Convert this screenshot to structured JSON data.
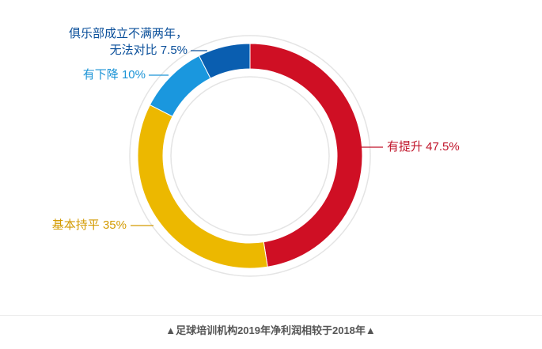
{
  "chart_data": {
    "type": "pie",
    "style": "donut",
    "categories": [
      "有提升",
      "基本持平",
      "有下降",
      "俱乐部成立不满两年，无法对比"
    ],
    "values": [
      47.5,
      35,
      10,
      7.5
    ],
    "unit": "%",
    "colors": [
      "#cf0f24",
      "#ecb800",
      "#1a97de",
      "#0a5eb0"
    ],
    "labels": [
      {
        "lines": [
          "有提升 47.5%"
        ],
        "color": "#c0142a"
      },
      {
        "lines": [
          "基本持平 35%"
        ],
        "color": "#d39a00"
      },
      {
        "lines": [
          "有下降 10%"
        ],
        "color": "#1a93d6"
      },
      {
        "lines": [
          "俱乐部成立不满两年，",
          "无法对比 7.5%"
        ],
        "color": "#0a4f9a"
      }
    ],
    "caption": "▲足球培训机构2019年净利润相较于2018年▲"
  }
}
